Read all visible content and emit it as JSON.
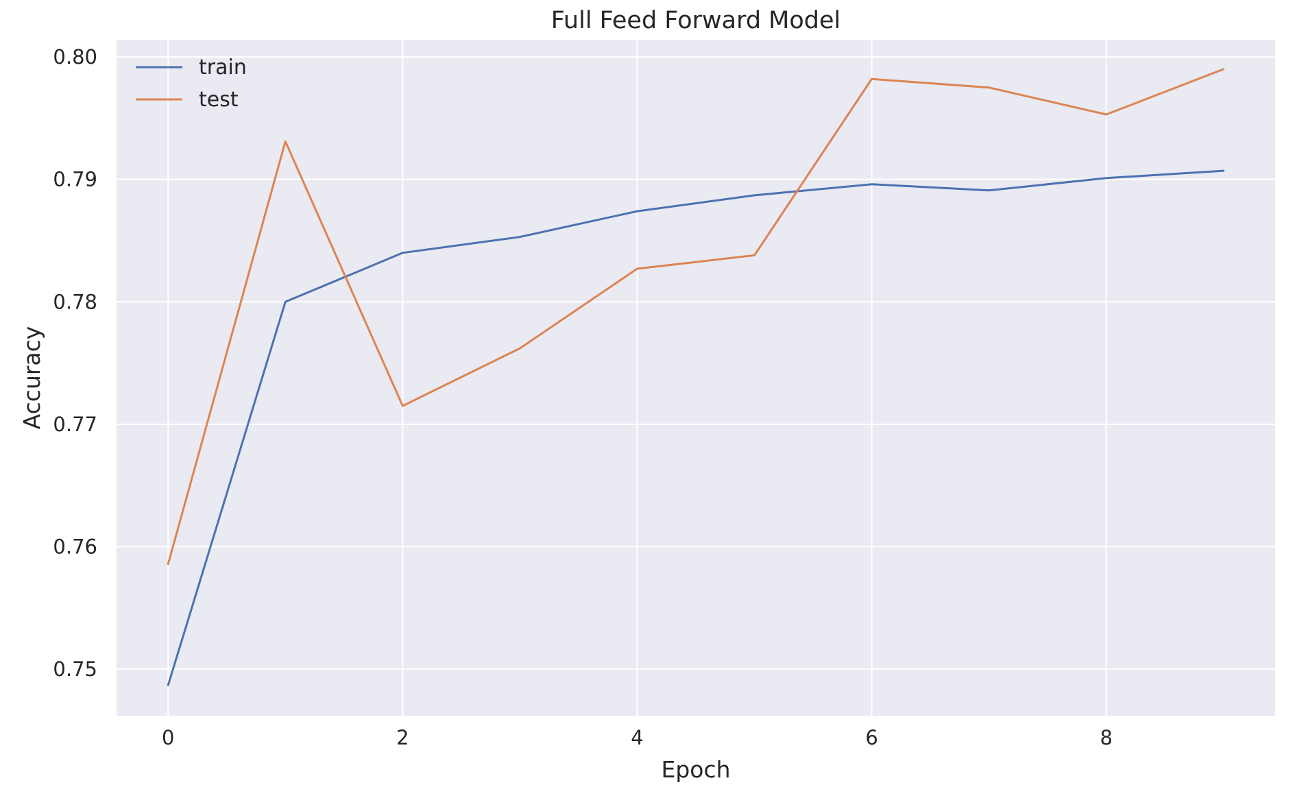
{
  "chart_data": {
    "type": "line",
    "title": "Full Feed Forward Model",
    "xlabel": "Epoch",
    "ylabel": "Accuracy",
    "x": [
      0,
      1,
      2,
      3,
      4,
      5,
      6,
      7,
      8,
      9
    ],
    "xlim": [
      -0.44,
      9.44
    ],
    "ylim": [
      0.7462,
      0.8014
    ],
    "xticks": [
      0,
      2,
      4,
      6,
      8
    ],
    "yticks": [
      0.75,
      0.76,
      0.77,
      0.78,
      0.79,
      0.8
    ],
    "xtick_labels": [
      "0",
      "2",
      "4",
      "6",
      "8"
    ],
    "ytick_labels": [
      "0.75",
      "0.76",
      "0.77",
      "0.78",
      "0.79",
      "0.80"
    ],
    "grid": true,
    "legend_position": "top-left",
    "series": [
      {
        "name": "train",
        "color": "#4c72b0",
        "values": [
          0.7487,
          0.78,
          0.784,
          0.7853,
          0.7874,
          0.7887,
          0.7896,
          0.7891,
          0.7901,
          0.7907
        ]
      },
      {
        "name": "test",
        "color": "#dd8452",
        "values": [
          0.7586,
          0.7931,
          0.7715,
          0.7762,
          0.7827,
          0.7838,
          0.7982,
          0.7975,
          0.7953,
          0.799
        ]
      }
    ],
    "colors": {
      "plot_background": "#eaeaf2",
      "grid": "#ffffff",
      "text": "#262626"
    }
  }
}
